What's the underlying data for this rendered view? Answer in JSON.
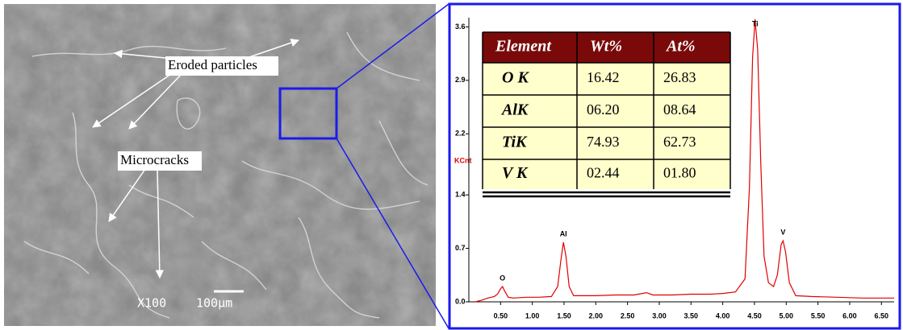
{
  "sem_image": {
    "labels": {
      "eroded": "Eroded particles",
      "microcracks": "Microcracks",
      "magnification": "X100",
      "scale": "100μm"
    }
  },
  "chart_data": {
    "type": "line",
    "ylabel": "KCnt",
    "color": "#e00000",
    "x": [
      0.1,
      0.2,
      0.3,
      0.4,
      0.45,
      0.5,
      0.53,
      0.56,
      0.62,
      0.7,
      0.9,
      1.1,
      1.3,
      1.4,
      1.45,
      1.49,
      1.53,
      1.58,
      1.65,
      1.8,
      2.0,
      2.3,
      2.6,
      2.8,
      2.9,
      3.2,
      3.5,
      3.8,
      4.0,
      4.2,
      4.35,
      4.42,
      4.47,
      4.51,
      4.55,
      4.6,
      4.65,
      4.72,
      4.8,
      4.86,
      4.92,
      4.95,
      4.99,
      5.05,
      5.15,
      5.4,
      5.8,
      6.2,
      6.7
    ],
    "values": [
      0.0,
      0.02,
      0.05,
      0.07,
      0.1,
      0.17,
      0.2,
      0.15,
      0.06,
      0.05,
      0.06,
      0.06,
      0.07,
      0.2,
      0.55,
      0.78,
      0.6,
      0.2,
      0.08,
      0.08,
      0.08,
      0.09,
      0.09,
      0.12,
      0.09,
      0.09,
      0.1,
      0.1,
      0.11,
      0.13,
      0.3,
      1.5,
      3.2,
      3.7,
      3.3,
      1.8,
      0.6,
      0.25,
      0.2,
      0.35,
      0.75,
      0.8,
      0.65,
      0.25,
      0.08,
      0.07,
      0.06,
      0.05,
      0.05
    ],
    "xlim": [
      0,
      6.7
    ],
    "ylim": [
      0,
      3.72
    ],
    "xticks": [
      {
        "value": 0.5,
        "label": "0.50"
      },
      {
        "value": 1,
        "label": "1.00"
      },
      {
        "value": 1.5,
        "label": "1.50"
      },
      {
        "value": 2,
        "label": "2.00"
      },
      {
        "value": 2.5,
        "label": "2.50"
      },
      {
        "value": 3,
        "label": "3.00"
      },
      {
        "value": 3.5,
        "label": "3.50"
      },
      {
        "value": 4,
        "label": "4.00"
      },
      {
        "value": 4.5,
        "label": "4.50"
      },
      {
        "value": 5,
        "label": "5.00"
      },
      {
        "value": 5.5,
        "label": "5.50"
      },
      {
        "value": 6,
        "label": "6.00"
      },
      {
        "value": 6.5,
        "label": "6.50"
      }
    ],
    "yticks": [
      {
        "value": 0,
        "label": "0.0"
      },
      0.7,
      1.4,
      2.2,
      2.9,
      3.6
    ],
    "annotations": [
      {
        "text": "O",
        "x": 0.53,
        "y": 0.2
      },
      {
        "text": "Al",
        "x": 1.49,
        "y": 0.78
      },
      {
        "text": "Ti",
        "x": 4.51,
        "y": 3.7
      },
      {
        "text": "V",
        "x": 4.95,
        "y": 0.8
      }
    ]
  },
  "table": {
    "header": [
      "Element",
      "Wt%",
      "At%"
    ],
    "rows": [
      [
        "O K",
        "16.42",
        "26.83"
      ],
      [
        "AlK",
        "06.20",
        "08.64"
      ],
      [
        "TiK",
        "74.93",
        "62.73"
      ],
      [
        "V K",
        "02.44",
        "01.80"
      ]
    ]
  }
}
